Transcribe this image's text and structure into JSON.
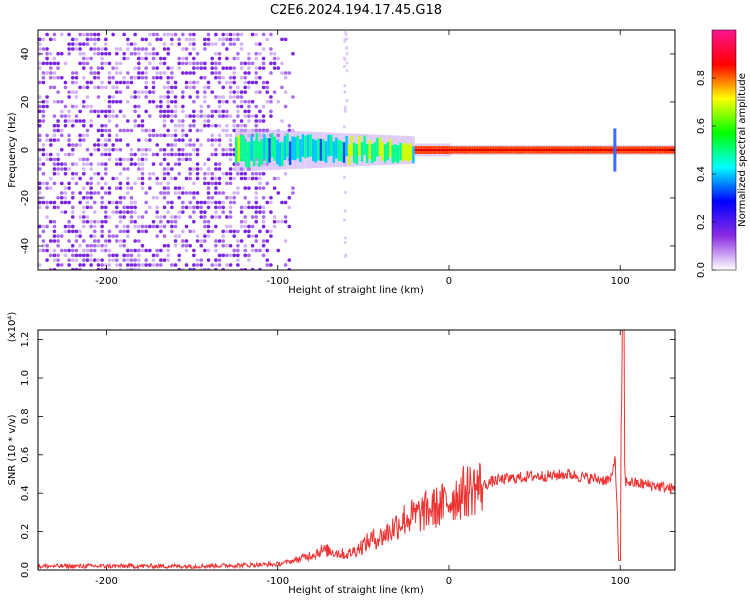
{
  "title": "C2E6.2024.194.17.45.G18",
  "chart_data": [
    {
      "type": "heatmap",
      "xlabel": "Height of straight line (km)",
      "ylabel": "Frequency (Hz)",
      "xlim": [
        -240,
        132
      ],
      "ylim": [
        -50,
        50
      ],
      "xticks": [
        -200,
        -100,
        0,
        100
      ],
      "yticks": [
        -40,
        -20,
        0,
        20,
        40
      ],
      "colorbar": {
        "label": "Normalized spectral amplitude",
        "range": [
          0,
          1
        ],
        "ticks": [
          "0.0",
          "0.2",
          "0.4",
          "0.6",
          "0.8"
        ],
        "colormap": [
          "#ffffff",
          "#8a2be2",
          "#0000ff",
          "#00ffff",
          "#00ff00",
          "#ffff00",
          "#ff0000",
          "#ff1493"
        ]
      },
      "features": {
        "noise_region_x": [
          -240,
          -90
        ],
        "signal_start_x": -125,
        "signal_line_freq": 0,
        "spike_x": 97
      }
    },
    {
      "type": "line",
      "xlabel": "Height of straight line (km)",
      "ylabel": "SNR (10 * v/v)",
      "yscale_label": "(x10⁴)",
      "xlim": [
        -240,
        132
      ],
      "ylim": [
        0,
        1.25
      ],
      "xticks": [
        -200,
        -100,
        0,
        100
      ],
      "yticks": [
        0,
        0.2,
        0.4,
        0.6,
        0.8,
        1.0,
        1.2
      ],
      "ytick_labels": [
        "0.0",
        "0.2",
        "0.4",
        "0.6",
        "0.8",
        "1.0",
        "1.2"
      ],
      "series": [
        {
          "color": "#ee3333",
          "x": [
            -240,
            -200,
            -150,
            -120,
            -100,
            -90,
            -80,
            -75,
            -70,
            -65,
            -60,
            -55,
            -50,
            -45,
            -40,
            -35,
            -30,
            -25,
            -20,
            -15,
            -10,
            -5,
            0,
            5,
            10,
            15,
            20,
            25,
            30,
            40,
            50,
            60,
            70,
            80,
            90,
            95,
            97,
            99,
            101,
            103,
            105,
            110,
            120,
            132
          ],
          "y": [
            0.02,
            0.02,
            0.02,
            0.025,
            0.03,
            0.05,
            0.08,
            0.1,
            0.1,
            0.09,
            0.08,
            0.1,
            0.13,
            0.16,
            0.17,
            0.2,
            0.24,
            0.27,
            0.28,
            0.3,
            0.32,
            0.33,
            0.36,
            0.39,
            0.41,
            0.43,
            0.44,
            0.46,
            0.47,
            0.48,
            0.49,
            0.49,
            0.5,
            0.48,
            0.47,
            0.47,
            0.6,
            0.1,
            0.9,
            0.46,
            0.46,
            0.45,
            0.44,
            0.42
          ]
        }
      ]
    }
  ]
}
